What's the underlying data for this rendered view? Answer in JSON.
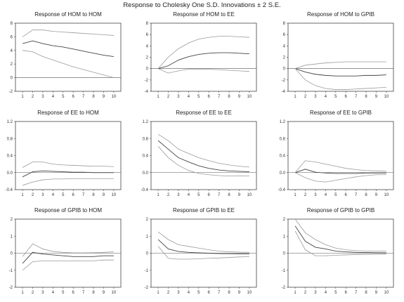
{
  "title": "Response to Cholesky One S.D. Innovations ± 2 S.E.",
  "chart_data": [
    {
      "type": "line",
      "title": "Response of HOM to HOM",
      "x": [
        1,
        2,
        3,
        4,
        5,
        6,
        7,
        8,
        9,
        10
      ],
      "ylim": [
        -2,
        8
      ],
      "yticks": [
        "-2",
        "0",
        "2",
        "4",
        "6",
        "8"
      ],
      "series": [
        {
          "values": [
            5.0,
            5.4,
            5.0,
            4.7,
            4.5,
            4.2,
            3.9,
            3.6,
            3.3,
            3.1
          ]
        },
        {
          "values": [
            6.0,
            7.0,
            7.0,
            6.8,
            6.7,
            6.6,
            6.5,
            6.4,
            6.3,
            6.2
          ]
        },
        {
          "values": [
            4.0,
            3.8,
            3.1,
            2.6,
            2.1,
            1.6,
            1.2,
            0.8,
            0.4,
            0.0
          ]
        }
      ]
    },
    {
      "type": "line",
      "title": "Response of HOM to EE",
      "x": [
        1,
        2,
        3,
        4,
        5,
        6,
        7,
        8,
        9,
        10
      ],
      "ylim": [
        -4,
        8
      ],
      "yticks": [
        "-4",
        "-2",
        "0",
        "2",
        "4",
        "6",
        "8"
      ],
      "series": [
        {
          "values": [
            0.0,
            0.5,
            1.5,
            2.1,
            2.5,
            2.7,
            2.8,
            2.8,
            2.7,
            2.6
          ]
        },
        {
          "values": [
            0.0,
            2.0,
            3.5,
            4.5,
            5.2,
            5.5,
            5.7,
            5.7,
            5.6,
            5.5
          ]
        },
        {
          "values": [
            0.0,
            -0.8,
            -0.4,
            -0.1,
            -0.1,
            -0.1,
            -0.2,
            -0.3,
            -0.4,
            -0.5
          ]
        }
      ]
    },
    {
      "type": "line",
      "title": "Response of HOM to GPIB",
      "x": [
        1,
        2,
        3,
        4,
        5,
        6,
        7,
        8,
        9,
        10
      ],
      "ylim": [
        -4,
        8
      ],
      "yticks": [
        "-4",
        "-2",
        "0",
        "2",
        "4",
        "6",
        "8"
      ],
      "series": [
        {
          "values": [
            0.0,
            -0.6,
            -1.0,
            -1.2,
            -1.3,
            -1.3,
            -1.3,
            -1.2,
            -1.2,
            -1.1
          ]
        },
        {
          "values": [
            0.0,
            0.6,
            0.8,
            1.0,
            1.1,
            1.2,
            1.2,
            1.2,
            1.2,
            1.2
          ]
        },
        {
          "values": [
            0.0,
            -2.0,
            -3.0,
            -3.5,
            -3.7,
            -3.7,
            -3.6,
            -3.5,
            -3.4,
            -3.3
          ]
        }
      ]
    },
    {
      "type": "line",
      "title": "Response of EE to HOM",
      "x": [
        1,
        2,
        3,
        4,
        5,
        6,
        7,
        8,
        9,
        10
      ],
      "ylim": [
        -0.4,
        1.2
      ],
      "yticks": [
        "-0.4",
        "0.0",
        "0.4",
        "0.8",
        "1.2"
      ],
      "series": [
        {
          "values": [
            -0.1,
            0.02,
            0.04,
            0.03,
            0.02,
            0.01,
            0.01,
            0.0,
            0.0,
            0.0
          ]
        },
        {
          "values": [
            0.12,
            0.25,
            0.25,
            0.2,
            0.18,
            0.17,
            0.16,
            0.15,
            0.15,
            0.14
          ]
        },
        {
          "values": [
            -0.3,
            -0.22,
            -0.17,
            -0.15,
            -0.15,
            -0.14,
            -0.14,
            -0.14,
            -0.14,
            -0.14
          ]
        }
      ]
    },
    {
      "type": "line",
      "title": "Response of EE to EE",
      "x": [
        1,
        2,
        3,
        4,
        5,
        6,
        7,
        8,
        9,
        10
      ],
      "ylim": [
        -0.4,
        1.2
      ],
      "yticks": [
        "-0.4",
        "0.0",
        "0.4",
        "0.8",
        "1.2"
      ],
      "series": [
        {
          "values": [
            0.75,
            0.55,
            0.35,
            0.25,
            0.16,
            0.1,
            0.06,
            0.04,
            0.03,
            0.02
          ]
        },
        {
          "values": [
            0.9,
            0.75,
            0.55,
            0.45,
            0.35,
            0.28,
            0.22,
            0.18,
            0.15,
            0.13
          ]
        },
        {
          "values": [
            0.62,
            0.35,
            0.17,
            0.05,
            -0.02,
            -0.05,
            -0.07,
            -0.08,
            -0.08,
            -0.08
          ]
        }
      ]
    },
    {
      "type": "line",
      "title": "Response of EE to GPIB",
      "x": [
        1,
        2,
        3,
        4,
        5,
        6,
        7,
        8,
        9,
        10
      ],
      "ylim": [
        -0.4,
        1.2
      ],
      "yticks": [
        "-0.4",
        "0.0",
        "0.4",
        "0.8",
        "1.2"
      ],
      "series": [
        {
          "values": [
            0.0,
            0.08,
            0.01,
            -0.01,
            -0.02,
            -0.02,
            -0.02,
            -0.01,
            -0.01,
            -0.01
          ]
        },
        {
          "values": [
            0.0,
            0.28,
            0.25,
            0.2,
            0.15,
            0.1,
            0.07,
            0.05,
            0.04,
            0.03
          ]
        },
        {
          "values": [
            0.0,
            -0.12,
            -0.2,
            -0.22,
            -0.18,
            -0.14,
            -0.1,
            -0.07,
            -0.05,
            -0.05
          ]
        }
      ]
    },
    {
      "type": "line",
      "title": "Response of GPIB to HOM",
      "x": [
        1,
        2,
        3,
        4,
        5,
        6,
        7,
        8,
        9,
        10
      ],
      "ylim": [
        -2,
        2
      ],
      "yticks": [
        "-2",
        "-1",
        "0",
        "1",
        "2"
      ],
      "series": [
        {
          "values": [
            -0.6,
            0.05,
            -0.05,
            -0.1,
            -0.15,
            -0.2,
            -0.2,
            -0.2,
            -0.15,
            -0.15
          ]
        },
        {
          "values": [
            -0.2,
            0.55,
            0.25,
            0.1,
            0.05,
            0.02,
            0.02,
            0.03,
            0.05,
            0.08
          ]
        },
        {
          "values": [
            -1.0,
            -0.5,
            -0.45,
            -0.45,
            -0.45,
            -0.45,
            -0.45,
            -0.45,
            -0.4,
            -0.4
          ]
        }
      ]
    },
    {
      "type": "line",
      "title": "Response of GPIB to EE",
      "x": [
        1,
        2,
        3,
        4,
        5,
        6,
        7,
        8,
        9,
        10
      ],
      "ylim": [
        -2,
        2
      ],
      "yticks": [
        "-2",
        "-1",
        "0",
        "1",
        "2"
      ],
      "series": [
        {
          "values": [
            0.8,
            0.25,
            0.1,
            0.05,
            0.02,
            0.0,
            -0.02,
            -0.03,
            -0.04,
            -0.05
          ]
        },
        {
          "values": [
            1.25,
            0.8,
            0.5,
            0.4,
            0.3,
            0.2,
            0.12,
            0.08,
            0.06,
            0.05
          ]
        },
        {
          "values": [
            0.4,
            -0.3,
            -0.35,
            -0.35,
            -0.33,
            -0.3,
            -0.28,
            -0.25,
            -0.22,
            -0.2
          ]
        }
      ]
    },
    {
      "type": "line",
      "title": "Response of GPIB to GPIB",
      "x": [
        1,
        2,
        3,
        4,
        5,
        6,
        7,
        8,
        9,
        10
      ],
      "ylim": [
        -2,
        2
      ],
      "yticks": [
        "-2",
        "-1",
        "0",
        "1",
        "2"
      ],
      "series": [
        {
          "values": [
            1.6,
            0.7,
            0.35,
            0.25,
            0.12,
            0.08,
            0.05,
            0.04,
            0.03,
            0.02
          ]
        },
        {
          "values": [
            2.0,
            1.2,
            0.8,
            0.5,
            0.3,
            0.2,
            0.15,
            0.13,
            0.12,
            0.12
          ]
        },
        {
          "values": [
            1.3,
            0.2,
            -0.15,
            -0.15,
            -0.12,
            -0.1,
            -0.08,
            -0.07,
            -0.06,
            -0.06
          ]
        }
      ]
    }
  ]
}
